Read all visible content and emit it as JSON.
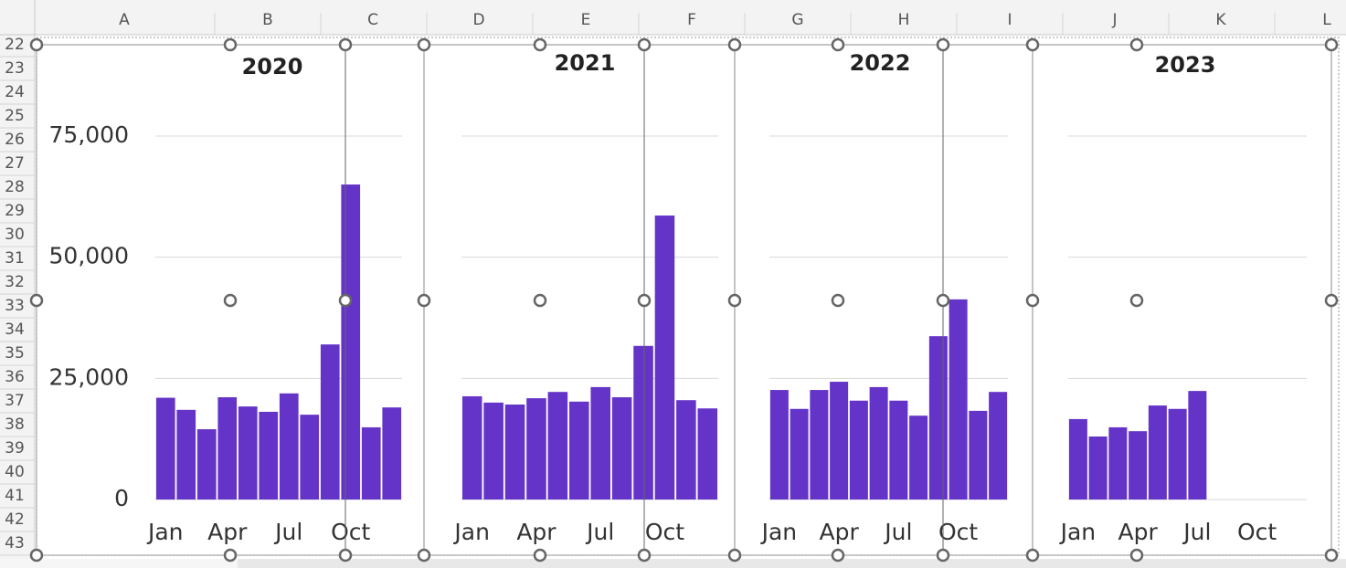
{
  "spreadsheet": {
    "columns": [
      "A",
      "B",
      "C",
      "D",
      "E",
      "F",
      "G",
      "H",
      "I",
      "J",
      "K",
      "L"
    ],
    "rows": [
      22,
      23,
      24,
      25,
      26,
      27,
      28,
      29,
      30,
      31,
      32,
      33,
      34,
      35,
      36,
      37,
      38,
      39,
      40,
      41,
      42,
      43
    ]
  },
  "chart_data": [
    {
      "type": "bar",
      "title": "2020",
      "color": "#6434c8",
      "grid": true,
      "y_tick_labels": true,
      "categories": [
        "Jan",
        null,
        null,
        "Apr",
        null,
        null,
        "Jul",
        null,
        null,
        "Oct",
        null,
        null
      ],
      "values": [
        21000,
        18500,
        14500,
        21100,
        19200,
        18100,
        21900,
        17500,
        32000,
        65000,
        14900,
        19000
      ],
      "ylim": [
        0,
        75000
      ],
      "yticks": [
        0,
        {
          "value": 25000,
          "label": "25,000"
        },
        {
          "value": 50000,
          "label": "50,000"
        },
        {
          "value": 75000,
          "label": "75,000"
        }
      ]
    },
    {
      "type": "bar",
      "title": "2021",
      "color": "#6434c8",
      "grid": true,
      "y_tick_labels": false,
      "categories": [
        "Jan",
        null,
        null,
        "Apr",
        null,
        null,
        "Jul",
        null,
        null,
        "Oct",
        null,
        null
      ],
      "values": [
        21300,
        20000,
        19600,
        20900,
        22200,
        20200,
        23200,
        21100,
        31700,
        58600,
        20500,
        18800
      ],
      "ylim": [
        0,
        75000
      ],
      "yticks": [
        0,
        25000,
        50000,
        75000
      ]
    },
    {
      "type": "bar",
      "title": "2022",
      "color": "#6434c8",
      "grid": true,
      "y_tick_labels": false,
      "categories": [
        "Jan",
        null,
        null,
        "Apr",
        null,
        null,
        "Jul",
        null,
        null,
        "Oct",
        null,
        null
      ],
      "values": [
        22600,
        18700,
        22600,
        24300,
        20400,
        23200,
        20400,
        17300,
        33700,
        41300,
        18300,
        22200
      ],
      "ylim": [
        0,
        75000
      ],
      "yticks": [
        0,
        25000,
        50000,
        75000
      ]
    },
    {
      "type": "bar",
      "title": "2023",
      "color": "#6434c8",
      "grid": true,
      "y_tick_labels": false,
      "categories": [
        "Jan",
        null,
        null,
        "Apr",
        null,
        null,
        "Jul",
        null,
        null,
        "Oct",
        null,
        null
      ],
      "values": [
        16600,
        13000,
        14900,
        14100,
        19400,
        18700,
        22400,
        null,
        null,
        null,
        null,
        null
      ],
      "ylim": [
        0,
        75000
      ],
      "yticks": [
        0,
        25000,
        50000,
        75000
      ]
    }
  ]
}
